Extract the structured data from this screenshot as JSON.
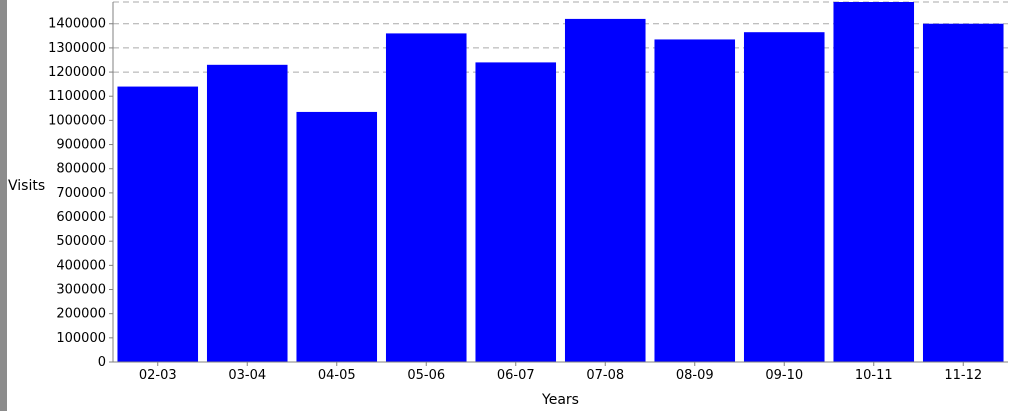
{
  "chart_data": {
    "type": "bar",
    "xlabel": "Years",
    "ylabel": "Visits",
    "categories": [
      "02-03",
      "03-04",
      "04-05",
      "05-06",
      "06-07",
      "07-08",
      "08-09",
      "09-10",
      "10-11",
      "11-12"
    ],
    "values": [
      1140000,
      1230000,
      1035000,
      1360000,
      1240000,
      1420000,
      1335000,
      1365000,
      1490000,
      1400000
    ],
    "ylim": [
      0,
      1490000
    ],
    "yticks": [
      0,
      100000,
      200000,
      300000,
      400000,
      500000,
      600000,
      700000,
      800000,
      900000,
      1000000,
      1100000,
      1200000,
      1300000,
      1400000
    ],
    "ytick_labels": [
      "0",
      "100000",
      "200000",
      "300000",
      "400000",
      "500000",
      "600000",
      "700000",
      "800000",
      "900000",
      "1000000",
      "1100000",
      "1200000",
      "1300000",
      "1400000"
    ],
    "grid": "horizontal-dashed",
    "colors": {
      "bar": "#0000ff",
      "grid": "#aaaaaa",
      "left_strip": "#8c8c8c",
      "axis": "#808080"
    }
  }
}
